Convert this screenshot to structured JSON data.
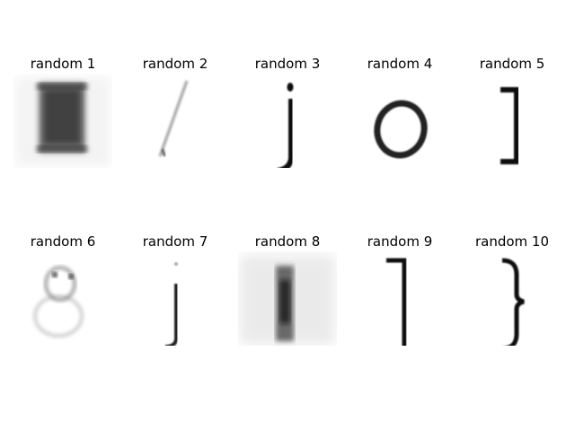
{
  "figure": {
    "panels": [
      {
        "title": "random 1",
        "glyph": "noisy-block"
      },
      {
        "title": "random 2",
        "glyph": "faint-slash"
      },
      {
        "title": "random 3",
        "glyph": "letter-j"
      },
      {
        "title": "random 4",
        "glyph": "letter-o"
      },
      {
        "title": "random 5",
        "glyph": "right-bracket"
      },
      {
        "title": "random 6",
        "glyph": "faint-blob"
      },
      {
        "title": "random 7",
        "glyph": "thin-j"
      },
      {
        "title": "random 8",
        "glyph": "noisy-bar"
      },
      {
        "title": "random 9",
        "glyph": "right-bracket"
      },
      {
        "title": "random 10",
        "glyph": "right-brace"
      }
    ]
  }
}
